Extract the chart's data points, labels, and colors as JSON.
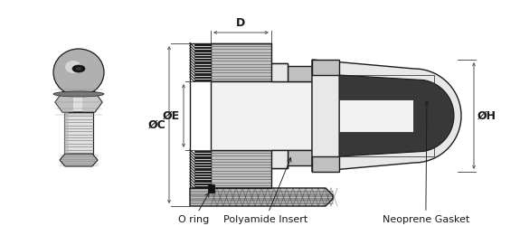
{
  "bg_color": "#ffffff",
  "bk": "#1a1a1a",
  "dim_color": "#555555",
  "colors": {
    "thread_black": "#202020",
    "body_gray": "#c0c0c0",
    "body_light": "#d8d8d8",
    "body_lighter": "#e8e8e8",
    "inner_white": "#f2f2f2",
    "dark_gasket": "#383838",
    "hatch_gray": "#888888",
    "silver_light": "#e0e0e0",
    "silver_mid": "#b0b0b0",
    "silver_dark": "#787878",
    "silver_shine": "#f0f0f0"
  },
  "labels": {
    "D": "D",
    "phiC": "ØC",
    "phiE": "ØE",
    "phiH": "ØH",
    "oring": "O ring",
    "poly": "Polyamide Insert",
    "neo": "Neoprene Gasket"
  },
  "font_dim": 9,
  "font_call": 8
}
